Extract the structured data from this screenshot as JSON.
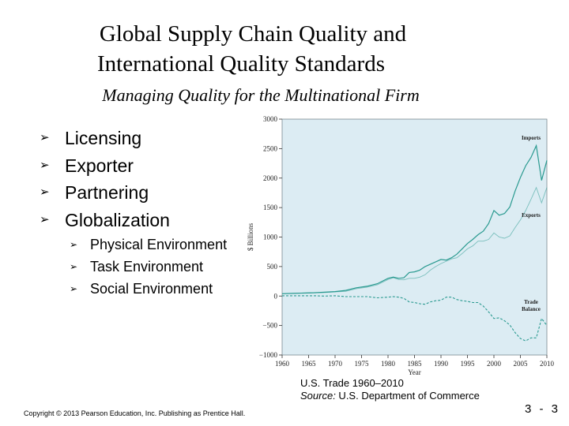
{
  "slide": {
    "title_line1": "Global Supply Chain  Quality and",
    "title_line2": "International Quality Standards",
    "subtitle": "Managing Quality for the Multinational Firm",
    "bullets": [
      "Licensing",
      "Exporter",
      "Partnering",
      "Globalization"
    ],
    "sub_bullets": [
      "Physical Environment",
      "Task Environment",
      "Social Environment"
    ],
    "arrow_glyph": "➢",
    "caption_line1": "U.S. Trade 1960–2010",
    "caption_source_label": "Source:",
    "caption_source_text": " U.S. Department of Commerce",
    "copyright": "Copyright © 2013 Pearson Education, Inc. Publishing as Prentice Hall.",
    "page_number": "3 - 3"
  },
  "chart_data": {
    "type": "line",
    "xlabel": "Year",
    "ylabel": "$ Billions",
    "xlim": [
      1960,
      2010
    ],
    "ylim": [
      -1000,
      3000
    ],
    "x_ticks": [
      1960,
      1965,
      1970,
      1975,
      1980,
      1985,
      1990,
      1995,
      2000,
      2005,
      2010
    ],
    "y_ticks": [
      -1000,
      -500,
      0,
      500,
      1000,
      1500,
      2000,
      2500,
      3000
    ],
    "y_tick_labels": [
      "−1000",
      "−500",
      "0",
      "500",
      "1000",
      "1500",
      "2000",
      "2500",
      "3000"
    ],
    "grid": false,
    "colors": {
      "background": "#dcecf3",
      "line": "#2a9a90"
    },
    "series": [
      {
        "name": "Imports",
        "x": [
          1960,
          1962,
          1964,
          1966,
          1968,
          1970,
          1972,
          1974,
          1976,
          1978,
          1980,
          1981,
          1982,
          1983,
          1984,
          1985,
          1986,
          1987,
          1988,
          1989,
          1990,
          1991,
          1992,
          1993,
          1994,
          1995,
          1996,
          1997,
          1998,
          1999,
          2000,
          2001,
          2002,
          2003,
          2004,
          2005,
          2006,
          2007,
          2008,
          2009,
          2010
        ],
        "values": [
          40,
          45,
          50,
          55,
          65,
          75,
          95,
          140,
          165,
          210,
          300,
          320,
          300,
          310,
          400,
          410,
          440,
          500,
          540,
          580,
          620,
          610,
          650,
          710,
          800,
          890,
          960,
          1040,
          1100,
          1230,
          1450,
          1370,
          1400,
          1510,
          1780,
          2010,
          2210,
          2350,
          2550,
          1960,
          2300
        ]
      },
      {
        "name": "Exports",
        "x": [
          1960,
          1962,
          1964,
          1966,
          1968,
          1970,
          1972,
          1974,
          1976,
          1978,
          1980,
          1981,
          1982,
          1983,
          1984,
          1985,
          1986,
          1987,
          1988,
          1989,
          1990,
          1991,
          1992,
          1993,
          1994,
          1995,
          1996,
          1997,
          1998,
          1999,
          2000,
          2001,
          2002,
          2003,
          2004,
          2005,
          2006,
          2007,
          2008,
          2009,
          2010
        ],
        "values": [
          40,
          45,
          50,
          55,
          60,
          70,
          80,
          125,
          150,
          190,
          280,
          310,
          280,
          275,
          300,
          300,
          320,
          360,
          440,
          500,
          550,
          590,
          630,
          650,
          720,
          800,
          850,
          930,
          930,
          960,
          1070,
          1000,
          980,
          1020,
          1160,
          1290,
          1450,
          1640,
          1840,
          1580,
          1840
        ]
      },
      {
        "name": "Trade Balance",
        "x": [
          1960,
          1962,
          1964,
          1966,
          1968,
          1970,
          1972,
          1974,
          1976,
          1978,
          1980,
          1981,
          1982,
          1983,
          1984,
          1985,
          1986,
          1987,
          1988,
          1989,
          1990,
          1991,
          1992,
          1993,
          1994,
          1995,
          1996,
          1997,
          1998,
          1999,
          2000,
          2001,
          2002,
          2003,
          2004,
          2005,
          2006,
          2007,
          2008,
          2009,
          2010
        ],
        "values": [
          5,
          5,
          5,
          5,
          0,
          5,
          -10,
          -10,
          -10,
          -30,
          -20,
          -10,
          -20,
          -40,
          -100,
          -110,
          -130,
          -140,
          -100,
          -80,
          -70,
          -20,
          -20,
          -60,
          -80,
          -90,
          -110,
          -110,
          -170,
          -270,
          -380,
          -370,
          -420,
          -490,
          -620,
          -720,
          -760,
          -710,
          -710,
          -380,
          -500
        ]
      }
    ],
    "annotations": [
      "Imports",
      "Exports",
      "Trade Balance"
    ]
  }
}
